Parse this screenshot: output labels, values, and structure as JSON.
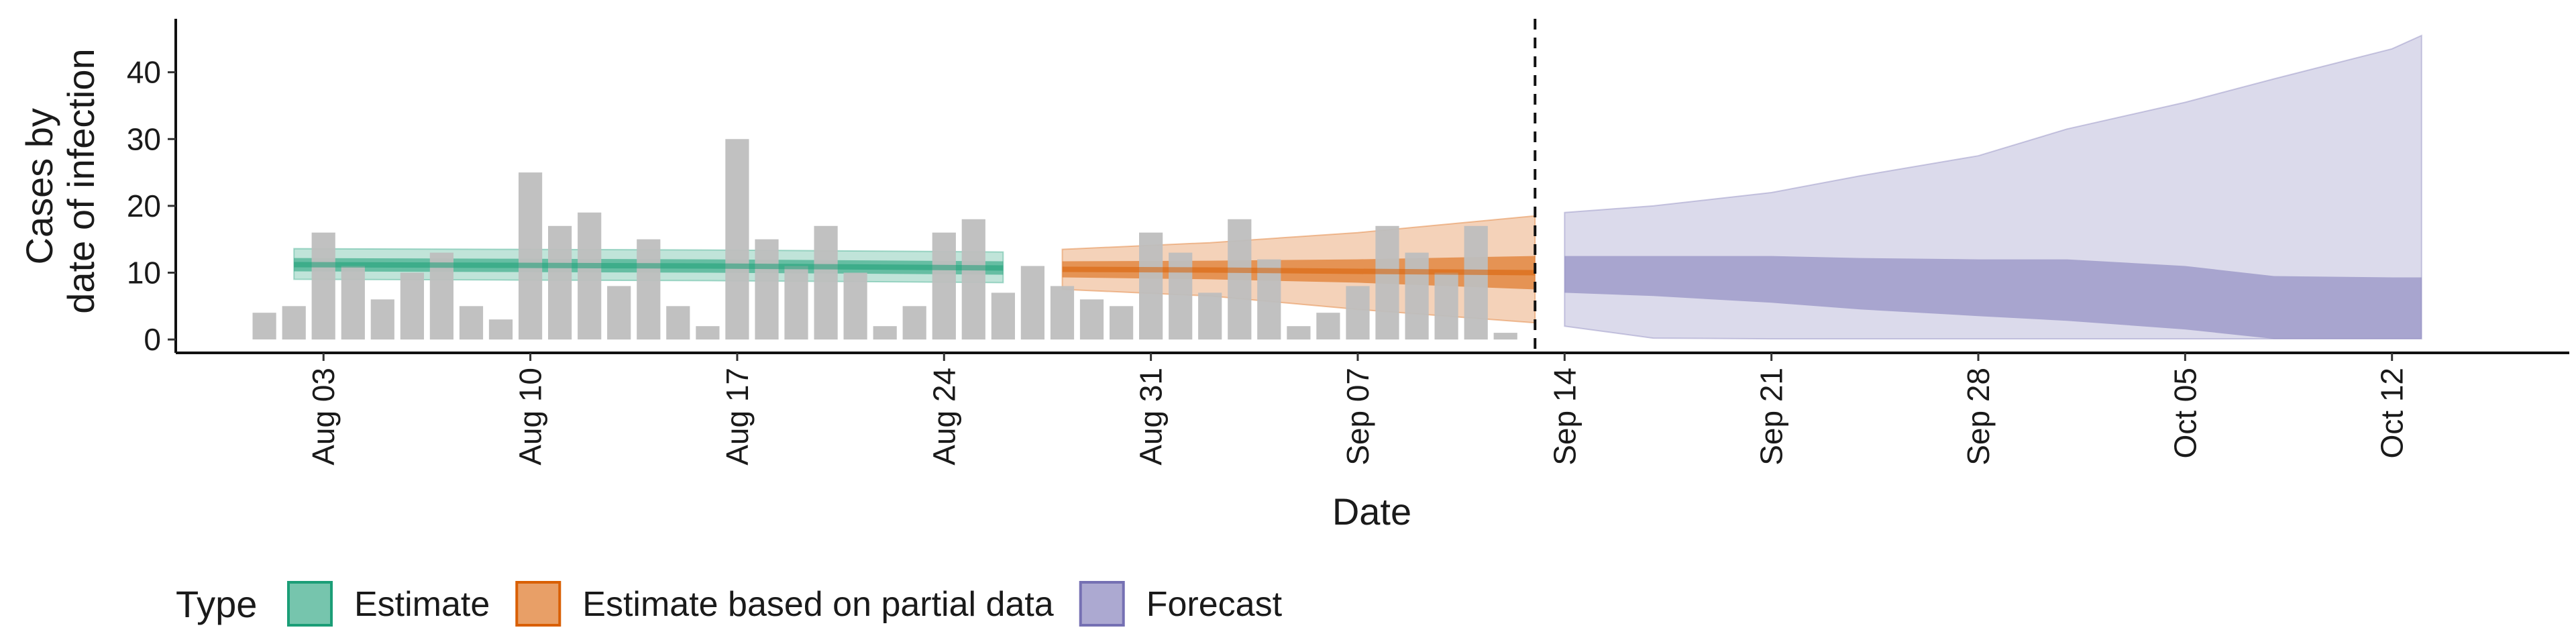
{
  "chart_data": {
    "type": "bar",
    "xlabel": "Date",
    "ylabel_lines": [
      "Cases by",
      "date of infection"
    ],
    "ylim": [
      -2,
      48
    ],
    "yticks": [
      0,
      10,
      20,
      30,
      40
    ],
    "x_date_range": [
      "2020-07-29",
      "2020-10-18"
    ],
    "xticks": [
      {
        "date": "2020-08-03",
        "label": "Aug 03"
      },
      {
        "date": "2020-08-10",
        "label": "Aug 10"
      },
      {
        "date": "2020-08-17",
        "label": "Aug 17"
      },
      {
        "date": "2020-08-24",
        "label": "Aug 24"
      },
      {
        "date": "2020-08-31",
        "label": "Aug 31"
      },
      {
        "date": "2020-09-07",
        "label": "Sep 07"
      },
      {
        "date": "2020-09-14",
        "label": "Sep 14"
      },
      {
        "date": "2020-09-21",
        "label": "Sep 21"
      },
      {
        "date": "2020-09-28",
        "label": "Sep 28"
      },
      {
        "date": "2020-10-05",
        "label": "Oct 05"
      },
      {
        "date": "2020-10-12",
        "label": "Oct 12"
      }
    ],
    "forecast_start": "2020-09-13",
    "reported_cases": {
      "start_date": "2020-08-01",
      "color": "#bebebe",
      "values": [
        4,
        5,
        16,
        11,
        6,
        10,
        13,
        5,
        3,
        25,
        17,
        19,
        8,
        15,
        5,
        2,
        30,
        15,
        11,
        17,
        10,
        2,
        5,
        16,
        18,
        7,
        11,
        8,
        6,
        5,
        16,
        13,
        7,
        18,
        12,
        2,
        4,
        8,
        17,
        13,
        10,
        17,
        1
      ]
    },
    "series": [
      {
        "name": "Estimate",
        "color": "#1b9e77",
        "x": [
          "2020-08-02",
          "2020-08-09",
          "2020-08-16",
          "2020-08-23",
          "2020-08-26"
        ],
        "median": [
          11.2,
          11.1,
          11.0,
          10.8,
          10.7
        ],
        "lower_50": [
          10.2,
          10.1,
          10.0,
          9.8,
          9.7
        ],
        "upper_50": [
          12.2,
          12.1,
          12.0,
          11.8,
          11.7
        ],
        "lower_90": [
          9.0,
          8.9,
          8.8,
          8.6,
          8.5
        ],
        "upper_90": [
          13.6,
          13.5,
          13.4,
          13.2,
          13.1
        ]
      },
      {
        "name": "Estimate based on partial data",
        "color": "#d95f02",
        "x": [
          "2020-08-28",
          "2020-09-02",
          "2020-09-07",
          "2020-09-13"
        ],
        "median": [
          10.5,
          10.4,
          10.2,
          10.0
        ],
        "lower_50": [
          9.3,
          9.0,
          8.5,
          7.5
        ],
        "upper_50": [
          11.7,
          11.8,
          12.0,
          12.5
        ],
        "lower_90": [
          7.5,
          6.5,
          4.5,
          2.5
        ],
        "upper_90": [
          13.5,
          14.5,
          16.0,
          18.5
        ]
      },
      {
        "name": "Forecast",
        "color": "#7570b3",
        "x": [
          "2020-09-14",
          "2020-09-17",
          "2020-09-21",
          "2020-09-24",
          "2020-09-28",
          "2020-10-01",
          "2020-10-05",
          "2020-10-08",
          "2020-10-12",
          "2020-10-13"
        ],
        "lower_50": [
          7.0,
          6.5,
          5.5,
          4.5,
          3.5,
          2.8,
          1.5,
          0.1,
          0.1,
          0.1
        ],
        "upper_50": [
          12.5,
          12.5,
          12.5,
          12.2,
          12.0,
          12.0,
          11.0,
          9.5,
          9.3,
          9.3
        ],
        "lower_90": [
          2.0,
          0.2,
          0.1,
          0.1,
          0.1,
          0.1,
          0.1,
          0.1,
          0.1,
          0.1
        ],
        "upper_90": [
          19.0,
          20.0,
          22.0,
          24.5,
          27.5,
          31.5,
          35.5,
          39.0,
          43.5,
          45.5
        ]
      }
    ],
    "legend": {
      "title": "Type",
      "position": "bottom",
      "entries": [
        {
          "label": "Estimate",
          "color": "#1b9e77"
        },
        {
          "label": "Estimate based on partial data",
          "color": "#d95f02"
        },
        {
          "label": "Forecast",
          "color": "#7570b3"
        }
      ]
    },
    "grid": false
  }
}
